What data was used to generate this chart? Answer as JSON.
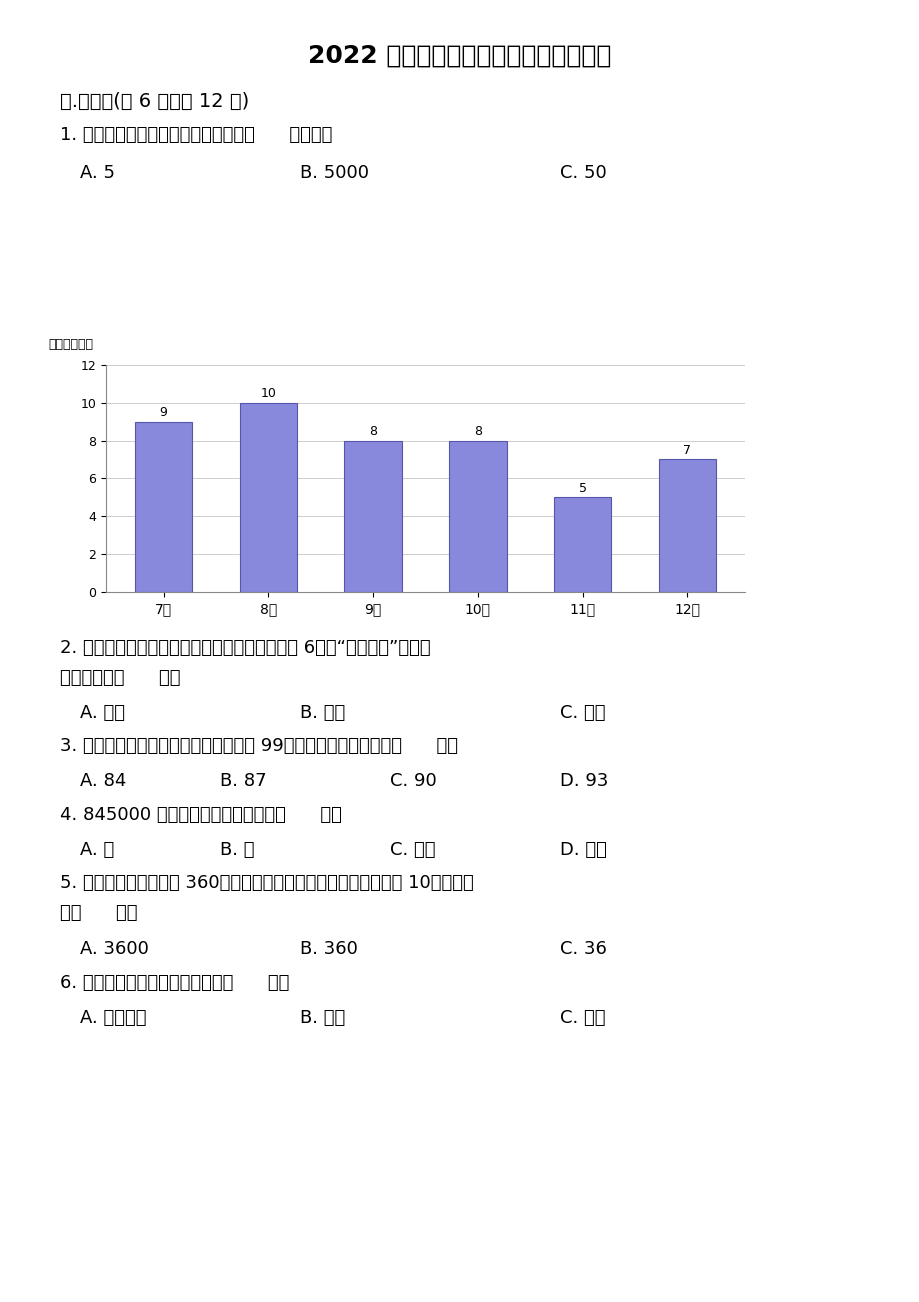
{
  "title": "2022 青岛版四年级上册数学期末测试卷",
  "background_color": "#ffffff",
  "section1_title": "一.选择题(公 6 题，公 12 分)",
  "q1_text": "1. 小红家下半年各月用水量最多相差（      ）千克。",
  "q1_options": [
    "A. 5",
    "B. 5000",
    "C. 50"
  ],
  "chart_ylabel": "用水量（吨）",
  "chart_months": [
    "7月",
    "8月",
    "9月",
    "10月",
    "11月",
    "12月"
  ],
  "chart_values": [
    9,
    10,
    8,
    8,
    5,
    7
  ],
  "chart_ylim": [
    0,
    12
  ],
  "chart_yticks": [
    0,
    2,
    4,
    6,
    8,
    10,
    12
  ],
  "bar_color": "#8888dd",
  "bar_edge_color": "#5555aa",
  "q2_text1": "2. 在计算除数是两位数的除法时，除数个位上是 6，用“四舍五入”法试商",
  "q2_text2": "时，商往往（      ）。",
  "q2_options": [
    "A. 正好",
    "B. 偏大",
    "C. 偏小"
  ],
  "q3_text": "3. 连续的六个自然数，后三个数的和是 99，那么前三个数的和是（      ）。",
  "q3_options": [
    "A. 84",
    "B. 87",
    "C. 90",
    "D. 93"
  ],
  "q4_text": "4. 845000 这个数，最高计数单位是（      ）。",
  "q4_options": [
    "A. 万",
    "B. 千",
    "C. 十万",
    "D. 百万"
  ],
  "q5_text1": "5. 两个因数相乘的积是 360，如果一个因数不变，另一个因数除以 10，那么积",
  "q5_text2": "是（      ）。",
  "q5_options": [
    "A. 3600",
    "B. 360",
    "C. 36"
  ],
  "q6_text": "6. 十位、千位、万位、亿位都是（      ）。",
  "q6_options": [
    "A. 计数单位",
    "B. 数位",
    "C. 位数"
  ],
  "font_color": "#000000",
  "title_fontsize": 18,
  "section_fontsize": 14,
  "body_fontsize": 13,
  "option_fontsize": 13
}
